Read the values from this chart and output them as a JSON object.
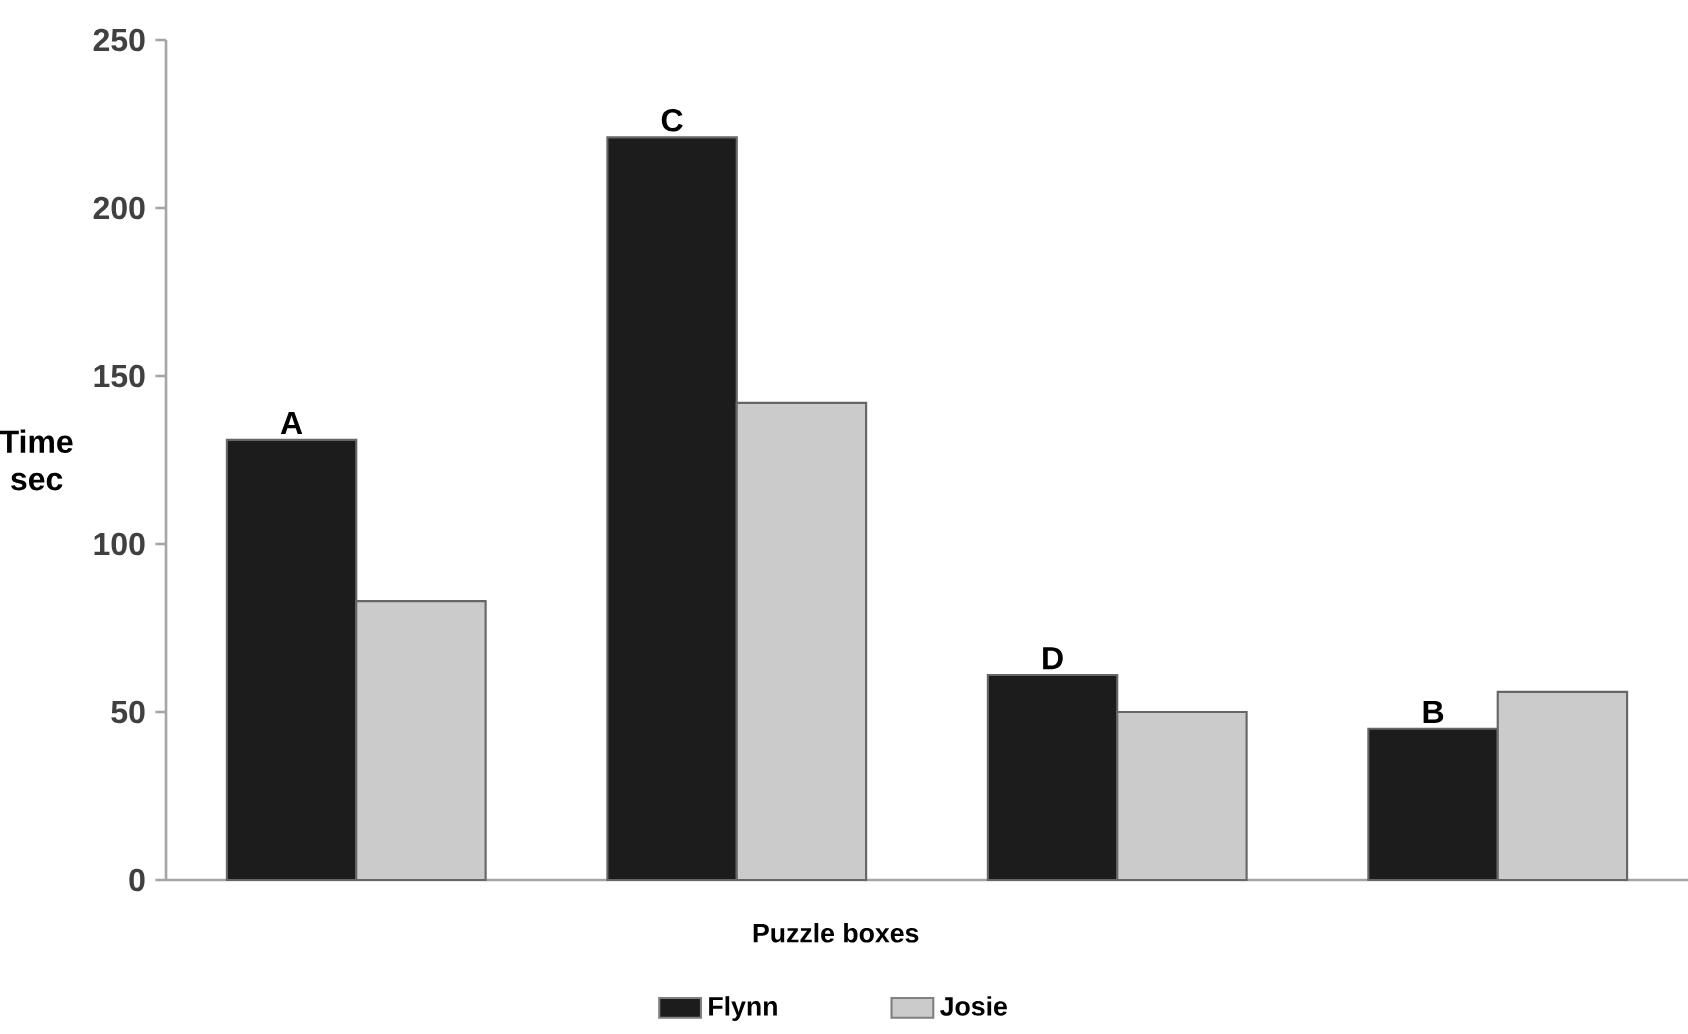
{
  "chart_data": {
    "type": "bar",
    "xlabel": "Puzzle boxes",
    "ylabel": "Time sec",
    "categories": [
      "A",
      "C",
      "D",
      "B"
    ],
    "series": [
      {
        "name": "Flynn",
        "color": "#1c1c1c",
        "values": [
          131,
          221,
          61,
          45
        ]
      },
      {
        "name": "Josie",
        "color": "#cbcbcb",
        "values": [
          83,
          142,
          50,
          56
        ]
      }
    ],
    "ylim": [
      0,
      250
    ],
    "yticks": [
      0,
      50,
      100,
      150,
      200,
      250
    ],
    "grid": false,
    "legend": "bottom"
  }
}
